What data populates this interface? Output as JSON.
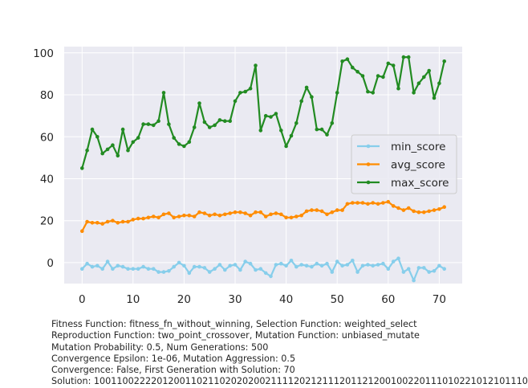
{
  "chart_data": {
    "type": "line",
    "title": "",
    "xlabel": "",
    "ylabel": "",
    "xlim": [
      -3.5,
      74.5
    ],
    "ylim": [
      -10,
      103
    ],
    "x_ticks": [
      0,
      10,
      20,
      30,
      40,
      50,
      60,
      70
    ],
    "y_ticks": [
      0,
      20,
      40,
      60,
      80,
      100
    ],
    "grid": true,
    "legend_position": "center-right",
    "x": [
      0,
      1,
      2,
      3,
      4,
      5,
      6,
      7,
      8,
      9,
      10,
      11,
      12,
      13,
      14,
      15,
      16,
      17,
      18,
      19,
      20,
      21,
      22,
      23,
      24,
      25,
      26,
      27,
      28,
      29,
      30,
      31,
      32,
      33,
      34,
      35,
      36,
      37,
      38,
      39,
      40,
      41,
      42,
      43,
      44,
      45,
      46,
      47,
      48,
      49,
      50,
      51,
      52,
      53,
      54,
      55,
      56,
      57,
      58,
      59,
      60,
      61,
      62,
      63,
      64,
      65,
      66,
      67,
      68,
      69,
      70,
      71
    ],
    "series": [
      {
        "name": "min_score",
        "color": "#87ceeb",
        "values": [
          -3,
          -0.5,
          -2,
          -1.5,
          -3,
          0.5,
          -3,
          -1.5,
          -2,
          -3,
          -3,
          -3,
          -2,
          -3,
          -3,
          -4.5,
          -4.5,
          -4,
          -2,
          0,
          -1.5,
          -5,
          -2,
          -2,
          -2.5,
          -4.5,
          -3,
          -1,
          -3.5,
          -1.5,
          -1,
          -3.5,
          0.5,
          -0.5,
          -3.5,
          -3,
          -5,
          -6.5,
          -1,
          -0.5,
          -1.5,
          1,
          -2,
          -1,
          -1.5,
          -2,
          -0.5,
          -1.5,
          -0.5,
          -4.5,
          0.5,
          -1.5,
          -1,
          1,
          -4.5,
          -1.5,
          -1,
          -1.5,
          -1,
          -0.5,
          -3,
          0.5,
          2,
          -4.5,
          -3,
          -8.5,
          -2.5,
          -2.5,
          -4.5,
          -4,
          -1.5,
          -3
        ]
      },
      {
        "name": "avg_score",
        "color": "#ff8c00",
        "values": [
          15,
          19.5,
          19,
          19,
          18.5,
          19.5,
          20,
          19,
          19.5,
          19.5,
          20.5,
          21,
          21,
          21.5,
          22,
          21.5,
          23,
          23.5,
          21.5,
          22,
          22.5,
          22.5,
          22,
          24,
          23.5,
          22.5,
          23,
          22.5,
          23,
          23.5,
          24,
          24,
          23.5,
          22.5,
          24,
          24,
          22,
          23,
          23.5,
          23,
          21.5,
          21.5,
          22,
          22.5,
          24.5,
          25,
          25,
          24.5,
          23,
          24,
          25,
          25,
          28,
          28.5,
          28.5,
          28.5,
          28,
          28.5,
          28,
          28.5,
          29,
          27,
          26,
          25,
          26,
          24.5,
          24,
          24,
          24.5,
          25,
          25.5,
          26.5
        ]
      },
      {
        "name": "max_score",
        "color": "#228b22",
        "values": [
          45,
          53.5,
          63.5,
          60,
          52,
          54,
          56,
          51,
          63.5,
          53.5,
          57.5,
          59.5,
          66,
          66,
          65.5,
          67.5,
          81,
          66,
          59.5,
          56.5,
          55.5,
          57.5,
          64.5,
          76,
          67,
          64.5,
          65.5,
          68,
          67.5,
          67.5,
          77,
          81,
          81.5,
          83,
          94,
          63,
          70,
          69.5,
          71,
          63,
          55.5,
          60.5,
          66.5,
          77,
          83.5,
          79,
          63.5,
          63.5,
          61,
          66.5,
          81,
          96,
          97,
          93,
          91,
          89,
          81.5,
          81,
          89,
          88.5,
          95,
          94,
          83,
          98,
          98,
          81,
          85.5,
          88.5,
          91.5,
          78.5,
          85.5,
          96
        ]
      }
    ]
  },
  "caption": [
    "Fitness Function: fitness_fn_without_winning, Selection Function: weighted_select",
    "Reproduction Function: two_point_crossover, Mutation Function: unbiased_mutate",
    "Mutation Probability: 0.5, Num Generations: 500",
    "Convergence Epsilon: 1e-06, Mutation Aggression: 0.5",
    "Convergence: False, First Generation with Solution: 70",
    "Solution: 1001100222201200110211020202002111120212111201121200100220111010221012101110"
  ]
}
